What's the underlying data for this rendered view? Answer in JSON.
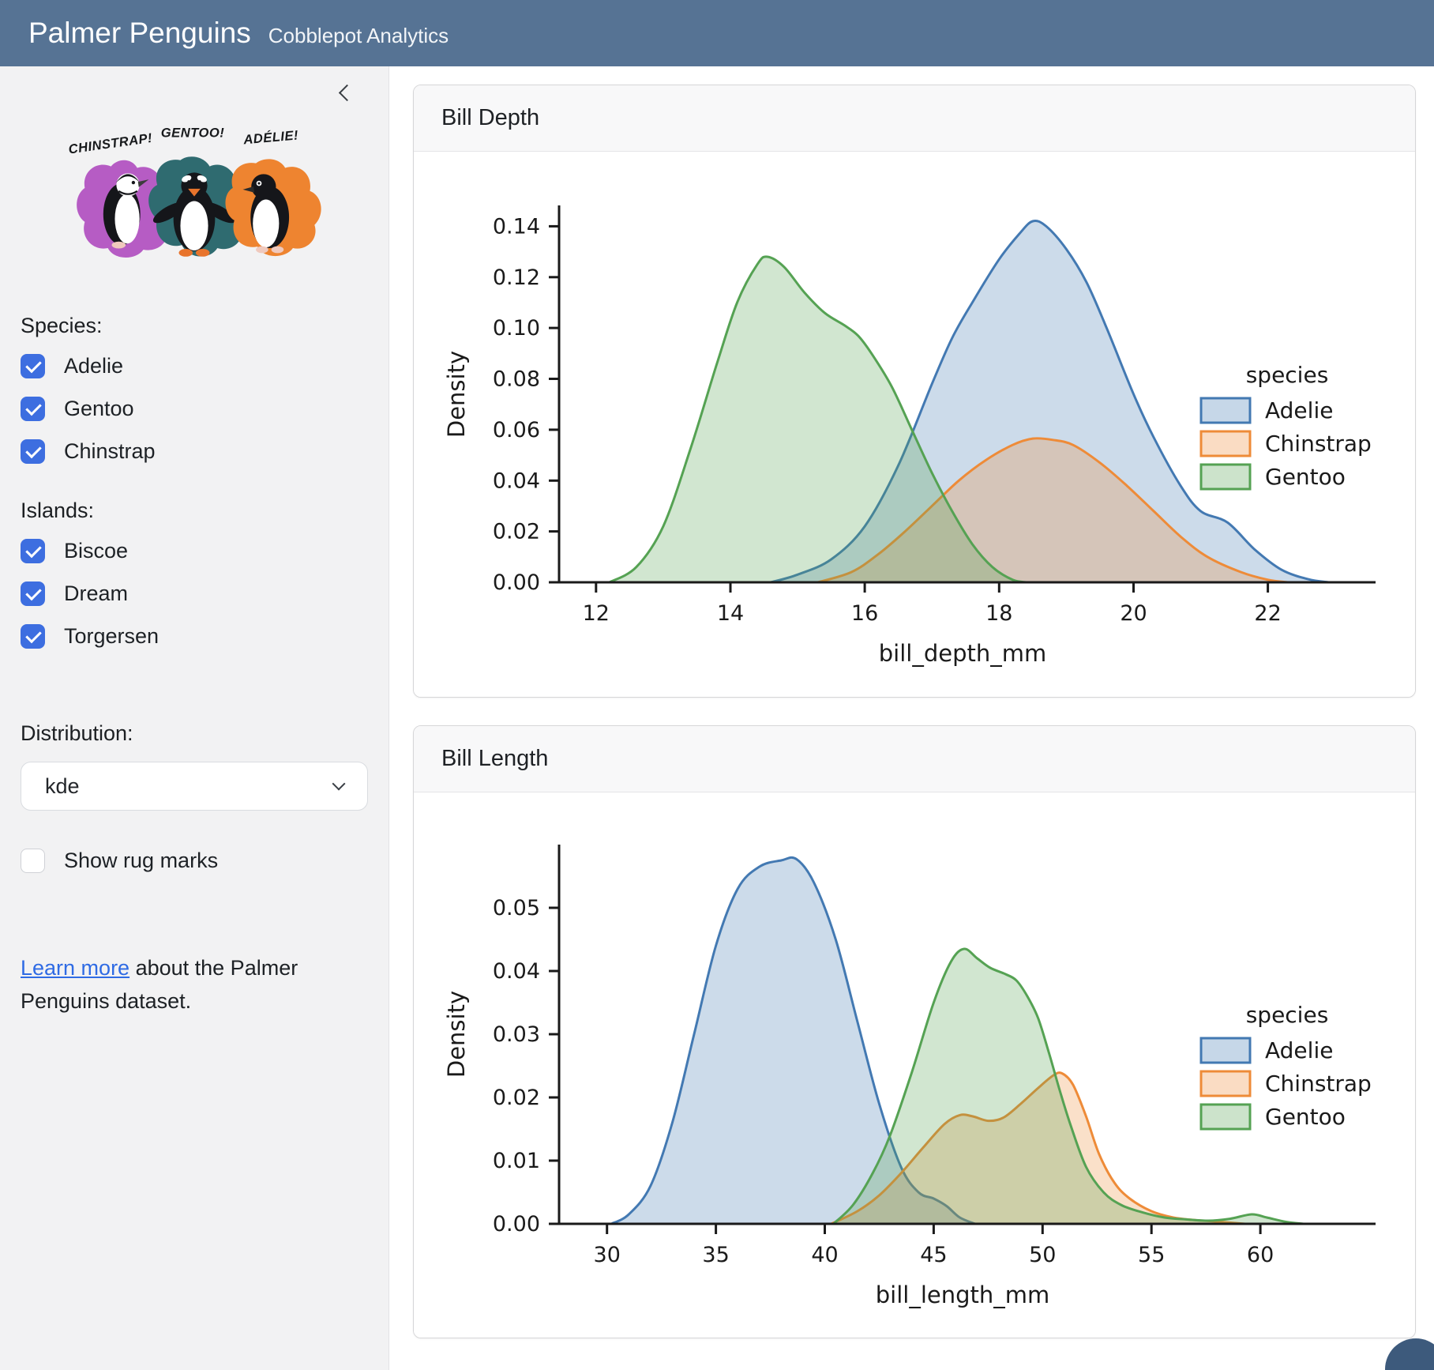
{
  "header": {
    "title": "Palmer Penguins",
    "subtitle": "Cobblepot Analytics"
  },
  "colors": {
    "navbar_bg": "#567394",
    "sidebar_bg": "#f2f2f3",
    "checkbox_accent": "#3d6ee0",
    "link": "#2f6be4",
    "adelie": "#4379b2",
    "chinstrap": "#ee8b38",
    "gentoo": "#55a253",
    "splat_purple": "#b65cc4",
    "splat_teal": "#2f6b70",
    "splat_orange": "#ee8430"
  },
  "sidebar": {
    "collapse_icon": "chevron-left",
    "artwork": {
      "labels": [
        "CHINSTRAP!",
        "GENTOO!",
        "ADÉLIE!"
      ]
    },
    "species": {
      "label": "Species:",
      "options": [
        {
          "label": "Adelie",
          "checked": true
        },
        {
          "label": "Gentoo",
          "checked": true
        },
        {
          "label": "Chinstrap",
          "checked": true
        }
      ]
    },
    "islands": {
      "label": "Islands:",
      "options": [
        {
          "label": "Biscoe",
          "checked": true
        },
        {
          "label": "Dream",
          "checked": true
        },
        {
          "label": "Torgersen",
          "checked": true
        }
      ]
    },
    "distribution": {
      "label": "Distribution:",
      "value": "kde"
    },
    "rug": {
      "label": "Show rug marks",
      "checked": false
    },
    "learn_more": {
      "link_text": "Learn more",
      "text_after": " about the Palmer Penguins dataset."
    }
  },
  "cards": [
    {
      "title": "Bill Depth"
    },
    {
      "title": "Bill Length"
    }
  ],
  "chart_data": [
    {
      "type": "area",
      "title": "Bill Depth",
      "xlabel": "bill_depth_mm",
      "ylabel": "Density",
      "xlim": [
        11.45,
        23.45
      ],
      "ylim": [
        0,
        0.1482
      ],
      "xticks": [
        12,
        14,
        16,
        18,
        20,
        22
      ],
      "yticks": [
        0,
        0.02,
        0.04,
        0.06,
        0.08,
        0.1,
        0.12,
        0.14
      ],
      "grid": false,
      "legend_title": "species",
      "legend_position": "right",
      "series": [
        {
          "name": "Adelie",
          "color": "#4379b2",
          "points": [
            [
              14.6,
              0
            ],
            [
              15.0,
              0.003
            ],
            [
              15.5,
              0.009
            ],
            [
              16.0,
              0.022
            ],
            [
              16.5,
              0.046
            ],
            [
              17.0,
              0.078
            ],
            [
              17.3,
              0.096
            ],
            [
              17.6,
              0.11
            ],
            [
              18.0,
              0.127
            ],
            [
              18.3,
              0.137
            ],
            [
              18.5,
              0.142
            ],
            [
              18.7,
              0.14
            ],
            [
              19.0,
              0.131
            ],
            [
              19.3,
              0.118
            ],
            [
              19.6,
              0.1
            ],
            [
              20.0,
              0.074
            ],
            [
              20.3,
              0.057
            ],
            [
              20.7,
              0.038
            ],
            [
              21.0,
              0.028
            ],
            [
              21.4,
              0.0235
            ],
            [
              21.8,
              0.013
            ],
            [
              22.2,
              0.005
            ],
            [
              22.6,
              0.0012
            ],
            [
              22.9,
              0
            ]
          ]
        },
        {
          "name": "Chinstrap",
          "color": "#ee8b38",
          "points": [
            [
              15.3,
              0
            ],
            [
              15.8,
              0.004
            ],
            [
              16.2,
              0.011
            ],
            [
              16.6,
              0.02
            ],
            [
              17.0,
              0.03
            ],
            [
              17.4,
              0.04
            ],
            [
              17.8,
              0.048
            ],
            [
              18.2,
              0.054
            ],
            [
              18.5,
              0.0565
            ],
            [
              18.8,
              0.056
            ],
            [
              19.1,
              0.054
            ],
            [
              19.5,
              0.047
            ],
            [
              19.9,
              0.038
            ],
            [
              20.3,
              0.028
            ],
            [
              20.7,
              0.018
            ],
            [
              21.1,
              0.01
            ],
            [
              21.6,
              0.004
            ],
            [
              22.0,
              0.001
            ],
            [
              22.3,
              0
            ]
          ]
        },
        {
          "name": "Gentoo",
          "color": "#55a253",
          "points": [
            [
              12.2,
              0
            ],
            [
              12.6,
              0.006
            ],
            [
              13.0,
              0.022
            ],
            [
              13.4,
              0.052
            ],
            [
              13.8,
              0.086
            ],
            [
              14.1,
              0.11
            ],
            [
              14.4,
              0.125
            ],
            [
              14.55,
              0.128
            ],
            [
              14.8,
              0.124
            ],
            [
              15.1,
              0.114
            ],
            [
              15.4,
              0.106
            ],
            [
              15.7,
              0.101
            ],
            [
              15.9,
              0.097
            ],
            [
              16.1,
              0.09
            ],
            [
              16.4,
              0.077
            ],
            [
              16.7,
              0.06
            ],
            [
              17.0,
              0.043
            ],
            [
              17.3,
              0.028
            ],
            [
              17.6,
              0.015
            ],
            [
              17.9,
              0.006
            ],
            [
              18.2,
              0.001
            ],
            [
              18.4,
              0
            ]
          ]
        }
      ]
    },
    {
      "type": "area",
      "title": "Bill Length",
      "xlabel": "bill_length_mm",
      "ylabel": "Density",
      "xlim": [
        27.8,
        64.82
      ],
      "ylim": [
        0,
        0.06
      ],
      "xticks": [
        30,
        35,
        40,
        45,
        50,
        55,
        60
      ],
      "yticks": [
        0,
        0.01,
        0.02,
        0.03,
        0.04,
        0.05
      ],
      "grid": false,
      "legend_title": "species",
      "legend_position": "right",
      "series": [
        {
          "name": "Adelie",
          "color": "#4379b2",
          "points": [
            [
              30.2,
              0
            ],
            [
              31,
              0.0015
            ],
            [
              32,
              0.006
            ],
            [
              33,
              0.016
            ],
            [
              34,
              0.03
            ],
            [
              35,
              0.044
            ],
            [
              36,
              0.053
            ],
            [
              37,
              0.0565
            ],
            [
              38,
              0.0575
            ],
            [
              38.7,
              0.0577
            ],
            [
              39.5,
              0.054
            ],
            [
              40.5,
              0.045
            ],
            [
              41.5,
              0.032
            ],
            [
              42.5,
              0.019
            ],
            [
              43.5,
              0.009
            ],
            [
              44.3,
              0.005
            ],
            [
              45,
              0.004
            ],
            [
              45.6,
              0.0028
            ],
            [
              46.2,
              0.001
            ],
            [
              46.9,
              0
            ]
          ]
        },
        {
          "name": "Chinstrap",
          "color": "#ee8b38",
          "points": [
            [
              40.3,
              0
            ],
            [
              41.5,
              0.002
            ],
            [
              42.5,
              0.0045
            ],
            [
              43.5,
              0.008
            ],
            [
              44.5,
              0.012
            ],
            [
              45.5,
              0.0158
            ],
            [
              46.2,
              0.0172
            ],
            [
              46.8,
              0.017
            ],
            [
              47.5,
              0.0163
            ],
            [
              48.2,
              0.0168
            ],
            [
              49.0,
              0.019
            ],
            [
              49.8,
              0.0215
            ],
            [
              50.5,
              0.0235
            ],
            [
              50.9,
              0.0238
            ],
            [
              51.4,
              0.022
            ],
            [
              52.0,
              0.017
            ],
            [
              52.6,
              0.011
            ],
            [
              53.3,
              0.0065
            ],
            [
              54.0,
              0.004
            ],
            [
              55.0,
              0.002
            ],
            [
              56.0,
              0.001
            ],
            [
              57.0,
              0.0006
            ],
            [
              58.2,
              0.0003
            ],
            [
              59.3,
              0
            ]
          ]
        },
        {
          "name": "Gentoo",
          "color": "#55a253",
          "points": [
            [
              40.4,
              0
            ],
            [
              41.3,
              0.003
            ],
            [
              42.2,
              0.008
            ],
            [
              43.0,
              0.014
            ],
            [
              44.0,
              0.024
            ],
            [
              45.0,
              0.035
            ],
            [
              45.8,
              0.0415
            ],
            [
              46.4,
              0.0435
            ],
            [
              47.0,
              0.042
            ],
            [
              47.6,
              0.0405
            ],
            [
              48.3,
              0.0395
            ],
            [
              48.8,
              0.0385
            ],
            [
              49.3,
              0.036
            ],
            [
              49.8,
              0.0325
            ],
            [
              50.3,
              0.027
            ],
            [
              50.8,
              0.021
            ],
            [
              51.3,
              0.0155
            ],
            [
              52.0,
              0.009
            ],
            [
              52.8,
              0.005
            ],
            [
              53.6,
              0.003
            ],
            [
              54.6,
              0.0018
            ],
            [
              55.6,
              0.001
            ],
            [
              56.6,
              0.0007
            ],
            [
              57.6,
              0.0005
            ],
            [
              58.6,
              0.0008
            ],
            [
              59.6,
              0.0015
            ],
            [
              60.3,
              0.001
            ],
            [
              61.2,
              0.0003
            ],
            [
              62.0,
              0
            ]
          ]
        }
      ]
    }
  ]
}
